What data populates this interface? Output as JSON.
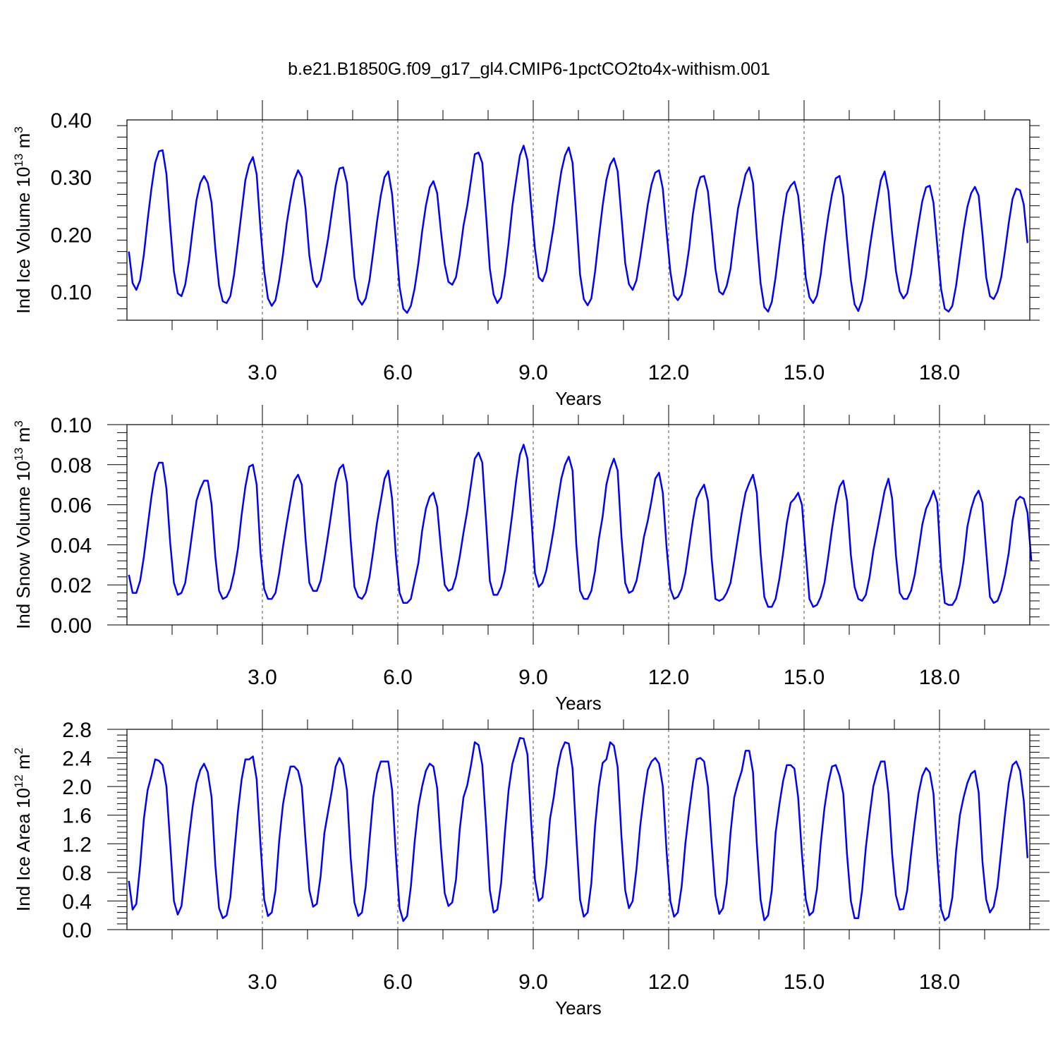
{
  "title": "b.e21.B1850G.f09_g17_gl4.CMIP6-1pctCO2to4x-withism.001",
  "colors": {
    "line": "#0000ff",
    "axes": "#000000",
    "grid": "#555555"
  },
  "chart_data": [
    {
      "type": "line",
      "xlabel": "Years",
      "ylabel": {
        "text": "Ind Ice Volume 10",
        "sup": "13",
        "unit": " m",
        "unit_sup": "3"
      },
      "xlim": [
        0,
        20
      ],
      "ylim": [
        0.05,
        0.4
      ],
      "x_ticks": [
        "3.0",
        "6.0",
        "9.0",
        "12.0",
        "15.0",
        "18.0"
      ],
      "y_ticks": [
        "0.10",
        "0.20",
        "0.30",
        "0.40"
      ],
      "grid": "x-dashed",
      "series": [
        {
          "x_start": 0.0417,
          "x_step": 0.0833,
          "values": [
            0.17,
            0.115,
            0.103,
            0.12,
            0.165,
            0.225,
            0.28,
            0.325,
            0.345,
            0.347,
            0.305,
            0.215,
            0.135,
            0.097,
            0.092,
            0.112,
            0.155,
            0.21,
            0.26,
            0.29,
            0.302,
            0.29,
            0.255,
            0.175,
            0.11,
            0.083,
            0.08,
            0.092,
            0.13,
            0.185,
            0.24,
            0.295,
            0.322,
            0.335,
            0.305,
            0.21,
            0.135,
            0.088,
            0.075,
            0.085,
            0.12,
            0.165,
            0.22,
            0.26,
            0.295,
            0.312,
            0.3,
            0.245,
            0.163,
            0.12,
            0.108,
            0.12,
            0.155,
            0.193,
            0.24,
            0.285,
            0.315,
            0.317,
            0.29,
            0.205,
            0.125,
            0.087,
            0.077,
            0.088,
            0.12,
            0.17,
            0.222,
            0.268,
            0.3,
            0.31,
            0.27,
            0.19,
            0.108,
            0.07,
            0.063,
            0.075,
            0.105,
            0.15,
            0.205,
            0.25,
            0.282,
            0.293,
            0.272,
            0.205,
            0.148,
            0.117,
            0.112,
            0.125,
            0.165,
            0.215,
            0.25,
            0.295,
            0.34,
            0.343,
            0.325,
            0.235,
            0.14,
            0.095,
            0.08,
            0.09,
            0.13,
            0.185,
            0.25,
            0.295,
            0.338,
            0.355,
            0.33,
            0.25,
            0.175,
            0.125,
            0.118,
            0.135,
            0.175,
            0.215,
            0.265,
            0.31,
            0.338,
            0.352,
            0.325,
            0.23,
            0.13,
            0.087,
            0.076,
            0.088,
            0.135,
            0.195,
            0.25,
            0.295,
            0.322,
            0.333,
            0.31,
            0.23,
            0.15,
            0.113,
            0.103,
            0.12,
            0.16,
            0.205,
            0.252,
            0.287,
            0.308,
            0.312,
            0.28,
            0.205,
            0.135,
            0.093,
            0.085,
            0.095,
            0.13,
            0.175,
            0.235,
            0.278,
            0.3,
            0.302,
            0.275,
            0.21,
            0.14,
            0.1,
            0.095,
            0.11,
            0.14,
            0.195,
            0.245,
            0.275,
            0.305,
            0.317,
            0.29,
            0.195,
            0.115,
            0.073,
            0.065,
            0.082,
            0.125,
            0.18,
            0.23,
            0.272,
            0.285,
            0.292,
            0.268,
            0.205,
            0.125,
            0.09,
            0.08,
            0.093,
            0.13,
            0.185,
            0.232,
            0.27,
            0.298,
            0.302,
            0.268,
            0.19,
            0.12,
            0.078,
            0.066,
            0.085,
            0.125,
            0.175,
            0.218,
            0.258,
            0.295,
            0.31,
            0.275,
            0.2,
            0.136,
            0.1,
            0.088,
            0.097,
            0.13,
            0.175,
            0.218,
            0.258,
            0.282,
            0.285,
            0.255,
            0.18,
            0.105,
            0.07,
            0.065,
            0.075,
            0.11,
            0.16,
            0.208,
            0.248,
            0.272,
            0.283,
            0.268,
            0.2,
            0.125,
            0.092,
            0.087,
            0.1,
            0.125,
            0.17,
            0.22,
            0.262,
            0.28,
            0.277,
            0.252,
            0.185
          ]
        }
      ]
    },
    {
      "type": "line",
      "xlabel": "Years",
      "ylabel": {
        "text": "Ind Snow Volume 10",
        "sup": "13",
        "unit": " m",
        "unit_sup": "3"
      },
      "xlim": [
        0,
        20
      ],
      "ylim": [
        0.0,
        0.1
      ],
      "x_ticks": [
        "3.0",
        "6.0",
        "9.0",
        "12.0",
        "15.0",
        "18.0"
      ],
      "y_ticks": [
        "0.00",
        "0.02",
        "0.04",
        "0.06",
        "0.08",
        "0.10"
      ],
      "grid": "x-dashed",
      "series": [
        {
          "x_start": 0.0417,
          "x_step": 0.0833,
          "values": [
            0.025,
            0.016,
            0.016,
            0.022,
            0.034,
            0.049,
            0.064,
            0.076,
            0.081,
            0.081,
            0.068,
            0.041,
            0.021,
            0.015,
            0.016,
            0.021,
            0.034,
            0.048,
            0.062,
            0.068,
            0.072,
            0.072,
            0.06,
            0.034,
            0.017,
            0.013,
            0.014,
            0.018,
            0.026,
            0.038,
            0.055,
            0.069,
            0.079,
            0.08,
            0.07,
            0.036,
            0.018,
            0.013,
            0.013,
            0.016,
            0.026,
            0.039,
            0.051,
            0.062,
            0.072,
            0.075,
            0.07,
            0.043,
            0.021,
            0.017,
            0.017,
            0.022,
            0.033,
            0.045,
            0.058,
            0.071,
            0.078,
            0.08,
            0.071,
            0.042,
            0.019,
            0.014,
            0.013,
            0.016,
            0.024,
            0.037,
            0.051,
            0.062,
            0.073,
            0.077,
            0.063,
            0.035,
            0.016,
            0.011,
            0.011,
            0.013,
            0.022,
            0.031,
            0.047,
            0.058,
            0.064,
            0.066,
            0.059,
            0.038,
            0.02,
            0.017,
            0.018,
            0.024,
            0.034,
            0.046,
            0.057,
            0.07,
            0.083,
            0.086,
            0.081,
            0.052,
            0.022,
            0.015,
            0.015,
            0.019,
            0.027,
            0.041,
            0.056,
            0.072,
            0.085,
            0.09,
            0.083,
            0.055,
            0.026,
            0.019,
            0.021,
            0.027,
            0.037,
            0.048,
            0.061,
            0.073,
            0.08,
            0.084,
            0.077,
            0.04,
            0.017,
            0.013,
            0.013,
            0.017,
            0.027,
            0.043,
            0.054,
            0.07,
            0.078,
            0.083,
            0.077,
            0.044,
            0.021,
            0.016,
            0.017,
            0.022,
            0.032,
            0.044,
            0.052,
            0.062,
            0.073,
            0.076,
            0.066,
            0.039,
            0.018,
            0.013,
            0.014,
            0.018,
            0.026,
            0.039,
            0.052,
            0.063,
            0.067,
            0.07,
            0.062,
            0.033,
            0.013,
            0.012,
            0.013,
            0.016,
            0.021,
            0.032,
            0.044,
            0.056,
            0.066,
            0.071,
            0.075,
            0.066,
            0.036,
            0.014,
            0.009,
            0.009,
            0.013,
            0.023,
            0.036,
            0.051,
            0.061,
            0.063,
            0.066,
            0.06,
            0.036,
            0.013,
            0.009,
            0.01,
            0.014,
            0.021,
            0.034,
            0.048,
            0.06,
            0.069,
            0.072,
            0.062,
            0.035,
            0.019,
            0.013,
            0.012,
            0.015,
            0.024,
            0.037,
            0.047,
            0.057,
            0.067,
            0.073,
            0.063,
            0.035,
            0.016,
            0.013,
            0.013,
            0.017,
            0.025,
            0.037,
            0.05,
            0.058,
            0.062,
            0.067,
            0.061,
            0.029,
            0.011,
            0.01,
            0.01,
            0.013,
            0.02,
            0.032,
            0.049,
            0.058,
            0.064,
            0.067,
            0.061,
            0.037,
            0.014,
            0.011,
            0.012,
            0.017,
            0.025,
            0.036,
            0.052,
            0.062,
            0.064,
            0.063,
            0.056,
            0.032
          ]
        }
      ]
    },
    {
      "type": "line",
      "xlabel": "Years",
      "ylabel": {
        "text": "Ind Ice Area 10",
        "sup": "12",
        "unit": " m",
        "unit_sup": "2"
      },
      "xlim": [
        0,
        20
      ],
      "ylim": [
        0.0,
        2.8
      ],
      "x_ticks": [
        "3.0",
        "6.0",
        "9.0",
        "12.0",
        "15.0",
        "18.0"
      ],
      "y_ticks": [
        "0.0",
        "0.4",
        "0.8",
        "1.2",
        "1.6",
        "2.0",
        "2.4",
        "2.8"
      ],
      "grid": "x-dashed",
      "series": [
        {
          "x_start": 0.0417,
          "x_step": 0.0833,
          "values": [
            0.68,
            0.28,
            0.36,
            0.9,
            1.55,
            1.95,
            2.15,
            2.38,
            2.36,
            2.3,
            2.0,
            1.2,
            0.4,
            0.21,
            0.33,
            0.8,
            1.3,
            1.73,
            2.05,
            2.23,
            2.32,
            2.2,
            1.85,
            0.9,
            0.3,
            0.16,
            0.2,
            0.45,
            1.05,
            1.65,
            2.1,
            2.38,
            2.38,
            2.42,
            2.1,
            1.2,
            0.42,
            0.19,
            0.24,
            0.55,
            1.25,
            1.75,
            2.05,
            2.28,
            2.28,
            2.22,
            2.0,
            1.25,
            0.55,
            0.32,
            0.36,
            0.75,
            1.35,
            1.65,
            1.95,
            2.28,
            2.4,
            2.3,
            1.95,
            1.0,
            0.38,
            0.19,
            0.24,
            0.6,
            1.25,
            1.85,
            2.18,
            2.35,
            2.35,
            2.35,
            1.95,
            1.05,
            0.3,
            0.12,
            0.19,
            0.6,
            1.22,
            1.72,
            2.0,
            2.22,
            2.32,
            2.28,
            1.98,
            1.15,
            0.51,
            0.33,
            0.38,
            0.7,
            1.4,
            1.85,
            2.02,
            2.3,
            2.62,
            2.58,
            2.3,
            1.48,
            0.55,
            0.24,
            0.28,
            0.65,
            1.35,
            1.95,
            2.32,
            2.5,
            2.68,
            2.67,
            2.45,
            1.5,
            0.7,
            0.4,
            0.45,
            0.9,
            1.55,
            1.85,
            2.25,
            2.5,
            2.62,
            2.6,
            2.25,
            1.3,
            0.42,
            0.18,
            0.24,
            0.65,
            1.45,
            2.0,
            2.33,
            2.38,
            2.62,
            2.57,
            2.27,
            1.3,
            0.55,
            0.3,
            0.4,
            0.85,
            1.45,
            1.88,
            2.23,
            2.35,
            2.4,
            2.32,
            2.0,
            1.1,
            0.4,
            0.18,
            0.24,
            0.6,
            1.2,
            1.65,
            2.05,
            2.38,
            2.4,
            2.35,
            2.0,
            1.2,
            0.48,
            0.22,
            0.3,
            0.65,
            1.35,
            1.85,
            2.05,
            2.22,
            2.5,
            2.5,
            2.2,
            1.2,
            0.42,
            0.13,
            0.2,
            0.55,
            1.35,
            1.75,
            2.08,
            2.3,
            2.3,
            2.25,
            1.85,
            1.05,
            0.43,
            0.2,
            0.25,
            0.57,
            1.2,
            1.7,
            2.05,
            2.28,
            2.3,
            2.15,
            1.9,
            1.05,
            0.4,
            0.16,
            0.16,
            0.55,
            1.15,
            1.6,
            2.0,
            2.2,
            2.35,
            2.35,
            1.9,
            1.05,
            0.48,
            0.28,
            0.29,
            0.55,
            1.05,
            1.5,
            1.9,
            2.15,
            2.26,
            2.2,
            1.9,
            1.0,
            0.29,
            0.13,
            0.18,
            0.45,
            1.1,
            1.6,
            1.85,
            2.05,
            2.18,
            2.22,
            1.92,
            0.95,
            0.42,
            0.24,
            0.32,
            0.6,
            1.1,
            1.6,
            2.05,
            2.3,
            2.35,
            2.22,
            1.8,
            1.0
          ]
        }
      ]
    }
  ]
}
